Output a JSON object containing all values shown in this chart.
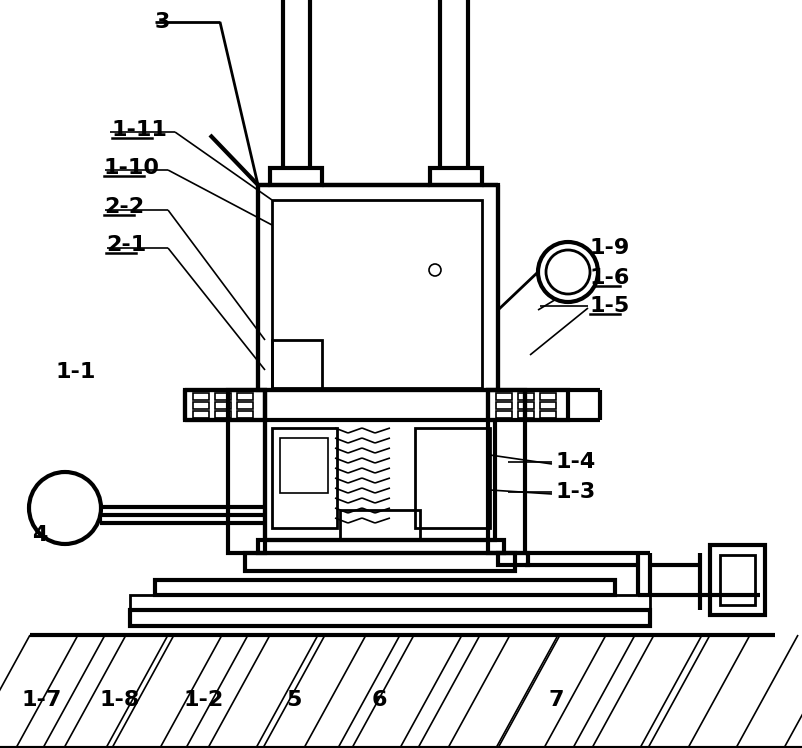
{
  "bg_color": "#ffffff",
  "line_color": "#000000",
  "lw_thick": 3.0,
  "lw_med": 2.0,
  "lw_thin": 1.2,
  "figsize": [
    8.02,
    7.48
  ],
  "dpi": 100,
  "label_fontsize": 16,
  "labels": [
    [
      "3",
      155,
      22,
      false
    ],
    [
      "1-11",
      112,
      130,
      true
    ],
    [
      "1-10",
      104,
      168,
      true
    ],
    [
      "2-2",
      104,
      207,
      true
    ],
    [
      "2-1",
      106,
      245,
      true
    ],
    [
      "1-1",
      55,
      372,
      false
    ],
    [
      "4",
      32,
      535,
      false
    ],
    [
      "1-7",
      22,
      700,
      false
    ],
    [
      "1-8",
      100,
      700,
      false
    ],
    [
      "1-2",
      183,
      700,
      false
    ],
    [
      "5",
      286,
      700,
      false
    ],
    [
      "6",
      372,
      700,
      false
    ],
    [
      "7",
      548,
      700,
      false
    ],
    [
      "1-9",
      590,
      248,
      false
    ],
    [
      "1-6",
      590,
      278,
      true
    ],
    [
      "1-5",
      590,
      306,
      true
    ],
    [
      "1-4",
      555,
      462,
      false
    ],
    [
      "1-3",
      555,
      492,
      false
    ]
  ]
}
